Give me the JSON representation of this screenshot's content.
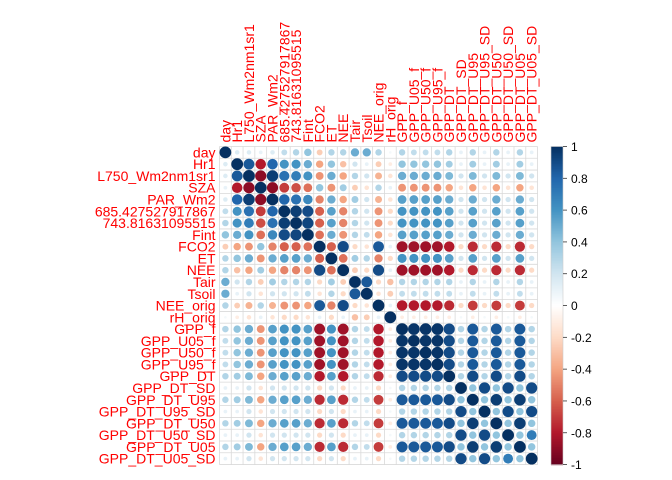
{
  "chart_data": {
    "type": "heatmap",
    "title": "",
    "variables": [
      "day",
      "Hr1",
      "L750_Wm2nm1sr1",
      "SZA",
      "PAR_Wm2",
      "685.427527917867",
      "743.81631095515",
      "Fint",
      "FCO2",
      "ET",
      "NEE",
      "Tair",
      "Tsoil",
      "NEE_orig",
      "rH_orig",
      "GPP_f",
      "GPP_U05_f",
      "GPP_U50_f",
      "GPP_U95_f",
      "GPP_DT",
      "GPP_DT_SD",
      "GPP_DT_U95",
      "GPP_DT_U95_SD",
      "GPP_DT_U50",
      "GPP_DT_U50_SD",
      "GPP_DT_U05",
      "GPP_DT_U05_SD"
    ],
    "matrix": [
      [
        1.0,
        0.15,
        0.15,
        0.1,
        0.15,
        0.25,
        0.3,
        0.4,
        -0.25,
        0.3,
        0.3,
        0.5,
        0.5,
        0.3,
        0.05,
        0.3,
        0.25,
        0.25,
        0.25,
        0.3,
        0.1,
        0.3,
        0.1,
        0.3,
        0.1,
        0.3,
        0.1
      ],
      [
        0.15,
        1.0,
        0.85,
        -0.8,
        0.8,
        0.6,
        0.6,
        0.5,
        -0.4,
        0.4,
        -0.3,
        0.2,
        0.1,
        -0.25,
        -0.1,
        0.4,
        0.4,
        0.4,
        0.4,
        0.35,
        0.1,
        0.35,
        0.1,
        0.35,
        0.1,
        0.35,
        0.1
      ],
      [
        0.15,
        0.85,
        1.0,
        -0.9,
        0.95,
        0.75,
        0.7,
        0.6,
        -0.45,
        0.5,
        -0.4,
        0.3,
        0.2,
        -0.35,
        -0.15,
        0.5,
        0.5,
        0.5,
        0.5,
        0.45,
        0.2,
        0.45,
        0.2,
        0.45,
        0.2,
        0.45,
        0.2
      ],
      [
        0.1,
        -0.8,
        -0.9,
        1.0,
        -0.9,
        -0.7,
        -0.65,
        -0.55,
        0.4,
        -0.45,
        0.35,
        -0.25,
        -0.15,
        0.3,
        0.1,
        -0.45,
        -0.45,
        -0.45,
        -0.45,
        -0.4,
        -0.15,
        -0.4,
        -0.15,
        -0.4,
        -0.15,
        -0.4,
        -0.15
      ],
      [
        0.15,
        0.8,
        0.95,
        -0.9,
        1.0,
        0.8,
        0.75,
        0.65,
        -0.5,
        0.5,
        -0.4,
        0.35,
        0.2,
        -0.35,
        -0.15,
        0.55,
        0.55,
        0.55,
        0.55,
        0.5,
        0.2,
        0.5,
        0.2,
        0.5,
        0.2,
        0.5,
        0.2
      ],
      [
        0.25,
        0.6,
        0.75,
        -0.7,
        0.8,
        1.0,
        0.95,
        0.9,
        -0.6,
        0.55,
        -0.5,
        0.3,
        0.2,
        -0.45,
        -0.2,
        0.6,
        0.6,
        0.6,
        0.6,
        0.55,
        0.2,
        0.55,
        0.2,
        0.55,
        0.2,
        0.55,
        0.2
      ],
      [
        0.3,
        0.6,
        0.7,
        -0.65,
        0.75,
        0.95,
        1.0,
        0.92,
        -0.6,
        0.55,
        -0.5,
        0.3,
        0.2,
        -0.45,
        -0.2,
        0.6,
        0.6,
        0.6,
        0.6,
        0.55,
        0.2,
        0.55,
        0.2,
        0.55,
        0.2,
        0.55,
        0.2
      ],
      [
        0.4,
        0.5,
        0.6,
        -0.55,
        0.65,
        0.9,
        0.92,
        1.0,
        -0.55,
        0.5,
        -0.45,
        0.3,
        0.25,
        -0.4,
        -0.15,
        0.55,
        0.55,
        0.55,
        0.55,
        0.5,
        0.2,
        0.5,
        0.2,
        0.5,
        0.2,
        0.5,
        0.2
      ],
      [
        -0.25,
        -0.4,
        -0.45,
        0.4,
        -0.5,
        -0.6,
        -0.6,
        -0.55,
        1.0,
        -0.6,
        0.9,
        -0.2,
        -0.15,
        0.85,
        0.1,
        -0.85,
        -0.85,
        -0.85,
        -0.85,
        -0.8,
        -0.2,
        -0.75,
        -0.2,
        -0.75,
        -0.2,
        -0.75,
        -0.2
      ],
      [
        0.3,
        0.4,
        0.5,
        -0.45,
        0.5,
        0.55,
        0.55,
        0.5,
        -0.6,
        1.0,
        -0.55,
        0.35,
        0.3,
        -0.5,
        -0.2,
        0.6,
        0.6,
        0.6,
        0.6,
        0.55,
        0.2,
        0.55,
        0.2,
        0.55,
        0.2,
        0.55,
        0.2
      ],
      [
        0.3,
        -0.3,
        -0.4,
        0.35,
        -0.4,
        -0.5,
        -0.5,
        -0.45,
        0.9,
        -0.55,
        1.0,
        -0.25,
        -0.2,
        0.9,
        0.1,
        -0.85,
        -0.85,
        -0.85,
        -0.85,
        -0.8,
        -0.2,
        -0.75,
        -0.2,
        -0.75,
        -0.2,
        -0.75,
        -0.2
      ],
      [
        0.5,
        0.2,
        0.3,
        -0.25,
        0.35,
        0.3,
        0.3,
        0.3,
        -0.2,
        0.35,
        -0.25,
        1.0,
        0.85,
        -0.2,
        -0.3,
        0.3,
        0.3,
        0.3,
        0.3,
        0.3,
        0.1,
        0.3,
        0.1,
        0.3,
        0.1,
        0.3,
        0.1
      ],
      [
        0.5,
        0.1,
        0.2,
        -0.15,
        0.2,
        0.2,
        0.2,
        0.25,
        -0.15,
        0.3,
        -0.2,
        0.85,
        1.0,
        -0.15,
        -0.25,
        0.25,
        0.25,
        0.25,
        0.25,
        0.25,
        0.1,
        0.25,
        0.1,
        0.25,
        0.1,
        0.25,
        0.1
      ],
      [
        0.3,
        -0.25,
        -0.35,
        0.3,
        -0.35,
        -0.45,
        -0.45,
        -0.4,
        0.85,
        -0.5,
        0.9,
        -0.2,
        -0.15,
        1.0,
        0.1,
        -0.8,
        -0.8,
        -0.8,
        -0.8,
        -0.75,
        -0.2,
        -0.7,
        -0.2,
        -0.7,
        -0.2,
        -0.7,
        -0.2
      ],
      [
        0.05,
        -0.1,
        -0.15,
        0.1,
        -0.15,
        -0.2,
        -0.2,
        -0.15,
        0.1,
        -0.2,
        0.1,
        -0.3,
        -0.25,
        0.1,
        1.0,
        -0.1,
        -0.1,
        -0.1,
        -0.1,
        -0.1,
        0.05,
        -0.1,
        0.05,
        -0.1,
        0.05,
        -0.1,
        0.05
      ],
      [
        0.3,
        0.4,
        0.5,
        -0.45,
        0.55,
        0.6,
        0.6,
        0.55,
        -0.85,
        0.6,
        -0.85,
        0.3,
        0.25,
        -0.8,
        -0.1,
        1.0,
        0.98,
        0.98,
        0.98,
        0.9,
        0.3,
        0.85,
        0.3,
        0.85,
        0.3,
        0.85,
        0.3
      ],
      [
        0.25,
        0.4,
        0.5,
        -0.45,
        0.55,
        0.6,
        0.6,
        0.55,
        -0.85,
        0.6,
        -0.85,
        0.3,
        0.25,
        -0.8,
        -0.1,
        0.98,
        1.0,
        0.98,
        0.98,
        0.9,
        0.3,
        0.85,
        0.3,
        0.85,
        0.3,
        0.85,
        0.3
      ],
      [
        0.25,
        0.4,
        0.5,
        -0.45,
        0.55,
        0.6,
        0.6,
        0.55,
        -0.85,
        0.6,
        -0.85,
        0.3,
        0.25,
        -0.8,
        -0.1,
        0.98,
        0.98,
        1.0,
        0.98,
        0.9,
        0.3,
        0.85,
        0.3,
        0.85,
        0.3,
        0.85,
        0.3
      ],
      [
        0.25,
        0.4,
        0.5,
        -0.45,
        0.55,
        0.6,
        0.6,
        0.55,
        -0.85,
        0.6,
        -0.85,
        0.3,
        0.25,
        -0.8,
        -0.1,
        0.98,
        0.98,
        0.98,
        1.0,
        0.9,
        0.3,
        0.85,
        0.3,
        0.85,
        0.3,
        0.85,
        0.3
      ],
      [
        0.3,
        0.35,
        0.45,
        -0.4,
        0.5,
        0.55,
        0.55,
        0.5,
        -0.8,
        0.55,
        -0.8,
        0.3,
        0.25,
        -0.75,
        -0.1,
        0.9,
        0.9,
        0.9,
        0.9,
        1.0,
        0.3,
        0.9,
        0.3,
        0.9,
        0.3,
        0.9,
        0.3
      ],
      [
        0.1,
        0.1,
        0.2,
        -0.15,
        0.2,
        0.2,
        0.2,
        0.2,
        -0.2,
        0.2,
        -0.2,
        0.1,
        0.1,
        -0.2,
        0.05,
        0.3,
        0.3,
        0.3,
        0.3,
        0.3,
        1.0,
        0.4,
        0.9,
        0.4,
        0.9,
        0.4,
        0.9
      ],
      [
        0.3,
        0.35,
        0.45,
        -0.4,
        0.5,
        0.55,
        0.55,
        0.5,
        -0.75,
        0.55,
        -0.75,
        0.3,
        0.25,
        -0.7,
        -0.1,
        0.85,
        0.85,
        0.85,
        0.85,
        0.9,
        0.4,
        1.0,
        0.4,
        0.95,
        0.4,
        0.95,
        0.4
      ],
      [
        0.1,
        0.1,
        0.2,
        -0.15,
        0.2,
        0.2,
        0.2,
        0.2,
        -0.2,
        0.2,
        -0.2,
        0.1,
        0.1,
        -0.2,
        0.05,
        0.3,
        0.3,
        0.3,
        0.3,
        0.3,
        0.9,
        0.4,
        1.0,
        0.4,
        0.9,
        0.4,
        0.9
      ],
      [
        0.3,
        0.35,
        0.45,
        -0.4,
        0.5,
        0.55,
        0.55,
        0.5,
        -0.75,
        0.55,
        -0.75,
        0.3,
        0.25,
        -0.7,
        -0.1,
        0.85,
        0.85,
        0.85,
        0.85,
        0.9,
        0.4,
        0.95,
        0.4,
        1.0,
        0.4,
        0.95,
        0.4
      ],
      [
        0.1,
        0.1,
        0.2,
        -0.15,
        0.2,
        0.2,
        0.2,
        0.2,
        -0.2,
        0.2,
        -0.2,
        0.1,
        0.1,
        -0.2,
        0.05,
        0.3,
        0.3,
        0.3,
        0.3,
        0.3,
        0.9,
        0.4,
        0.9,
        0.4,
        1.0,
        0.4,
        0.7
      ],
      [
        0.3,
        0.35,
        0.45,
        -0.4,
        0.5,
        0.55,
        0.55,
        0.5,
        -0.75,
        0.55,
        -0.75,
        0.3,
        0.25,
        -0.7,
        -0.1,
        0.85,
        0.85,
        0.85,
        0.85,
        0.9,
        0.4,
        0.95,
        0.4,
        0.95,
        0.4,
        1.0,
        0.4
      ],
      [
        0.1,
        0.1,
        0.2,
        -0.15,
        0.2,
        0.2,
        0.2,
        0.2,
        -0.2,
        0.2,
        -0.2,
        0.1,
        0.1,
        -0.2,
        0.05,
        0.3,
        0.3,
        0.3,
        0.3,
        0.3,
        0.9,
        0.4,
        0.9,
        0.4,
        0.7,
        0.4,
        1.0
      ]
    ],
    "colorbar_ticks": [
      "1",
      "0.8",
      "0.6",
      "0.4",
      "0.2",
      "0",
      "-0.2",
      "-0.4",
      "-0.6",
      "-0.8",
      "-1"
    ],
    "colorbar_range": [
      -1,
      1
    ],
    "label_color": "#ff0000",
    "palette": [
      "#67001f",
      "#b2182b",
      "#d6604d",
      "#f4a582",
      "#fddbc7",
      "#ffffff",
      "#d1e5f0",
      "#92c5de",
      "#4393c3",
      "#2166ac",
      "#053061"
    ],
    "grid": true,
    "legend_position": "right"
  }
}
